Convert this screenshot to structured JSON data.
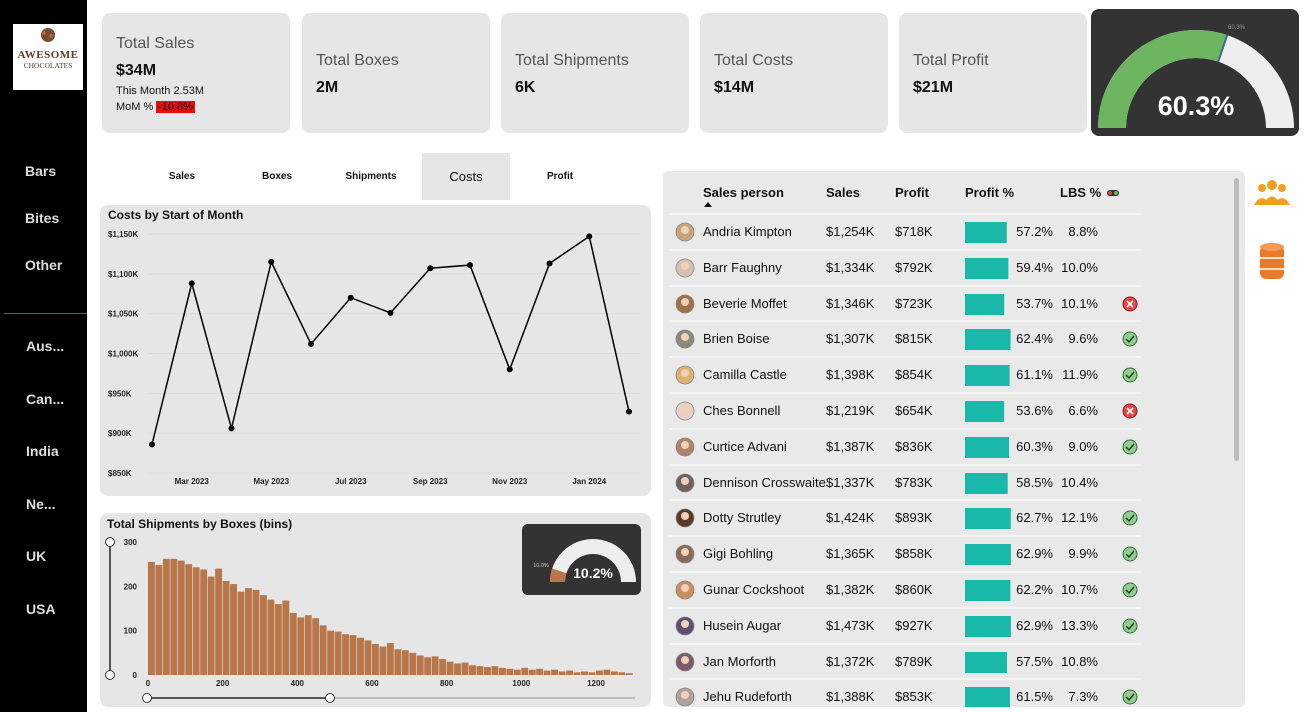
{
  "logo": {
    "line1": "AWESOME",
    "line2": "CHOCOLATES"
  },
  "sidebar": {
    "products": [
      "Bars",
      "Bites",
      "Other"
    ],
    "countries": [
      "Aus...",
      "Can...",
      "India",
      "Ne...",
      "UK",
      "USA"
    ]
  },
  "kpis": [
    {
      "title": "Total Sales",
      "value": "$34M",
      "this_month": "This Month 2.53M",
      "mom_label": "MoM %",
      "mom": "-10.8%"
    },
    {
      "title": "Total Boxes",
      "value": "2M"
    },
    {
      "title": "Total Shipments",
      "value": "6K"
    },
    {
      "title": "Total Costs",
      "value": "$14M"
    },
    {
      "title": "Total Profit",
      "value": "$21M"
    }
  ],
  "gauge": {
    "value": 60.3,
    "label": "60.3%",
    "marker_label": "60.3%",
    "lim": [
      0,
      100
    ]
  },
  "tabs": {
    "items": [
      "Sales",
      "Boxes",
      "Shipments",
      "Costs",
      "Profit"
    ],
    "selected": 3
  },
  "chart_data": [
    {
      "type": "line",
      "title": "Costs by Start of Month",
      "color": "#000000",
      "categories": [
        null,
        "Mar 2023",
        null,
        "May 2023",
        null,
        "Jul 2023",
        null,
        "Sep 2023",
        null,
        "Nov 2023",
        null,
        "Jan 2024",
        null
      ],
      "values": [
        886000,
        1088000,
        906000,
        1115000,
        1012000,
        1070000,
        1051000,
        1107000,
        1111000,
        980000,
        1113000,
        1147000,
        927000
      ],
      "ylim": [
        850000,
        1150000
      ],
      "yticks": [
        {
          "value": 850000,
          "label": "$850K"
        },
        {
          "value": 900000,
          "label": "$900K"
        },
        {
          "value": 950000,
          "label": "$950K"
        },
        {
          "value": 1000000,
          "label": "$1,000K"
        },
        {
          "value": 1050000,
          "label": "$1,050K"
        },
        {
          "value": 1100000,
          "label": "$1,100K"
        },
        {
          "value": 1150000,
          "label": "$1,150K"
        }
      ],
      "grid": true
    },
    {
      "type": "histogram",
      "title": "Total Shipments by Boxes (bins)",
      "color": "#b8774a",
      "bins": [
        0,
        20,
        40,
        60,
        80,
        100,
        120,
        140,
        160,
        180,
        200,
        220,
        240,
        260,
        280,
        300,
        320,
        340,
        360,
        380,
        400,
        420,
        440,
        460,
        480,
        500,
        520,
        540,
        560,
        580,
        600,
        620,
        640,
        660,
        680,
        700,
        720,
        740,
        760,
        780,
        800,
        820,
        840,
        860,
        880,
        900,
        920,
        940,
        960,
        980,
        1000,
        1020,
        1040,
        1060,
        1080,
        1100,
        1120,
        1140,
        1160,
        1180,
        1200,
        1220,
        1240,
        1260,
        1280,
        1300
      ],
      "values": [
        255,
        248,
        262,
        262,
        258,
        250,
        243,
        238,
        222,
        240,
        212,
        205,
        188,
        196,
        192,
        180,
        170,
        160,
        168,
        140,
        130,
        135,
        128,
        112,
        100,
        98,
        92,
        90,
        84,
        78,
        70,
        64,
        72,
        58,
        56,
        50,
        44,
        40,
        42,
        36,
        30,
        26,
        28,
        22,
        20,
        18,
        20,
        16,
        14,
        12,
        16,
        12,
        14,
        10,
        12,
        8,
        10,
        6,
        8,
        6,
        10,
        12,
        8,
        6,
        4
      ],
      "xlim": [
        -20,
        1320
      ],
      "xticks": [
        0,
        200,
        400,
        600,
        800,
        1000,
        1200
      ],
      "ylim": [
        0,
        300
      ],
      "yticks": [
        0,
        100,
        200,
        300
      ]
    }
  ],
  "shipments_gauge": {
    "value": 10.2,
    "label": "10.2%",
    "marker_label": "10.0%",
    "lim": [
      0,
      100
    ]
  },
  "table": {
    "columns": [
      "Sales person",
      "Sales",
      "Profit",
      "Profit %",
      "LBS %"
    ],
    "rows": [
      {
        "name": "Andria Kimpton",
        "sales": "$1,254K",
        "profit": "$718K",
        "profit_pct": {
          "value": 57.2,
          "label": "57.2%"
        },
        "lbs": "8.8%"
      },
      {
        "name": "Barr Faughny",
        "sales": "$1,334K",
        "profit": "$792K",
        "profit_pct": {
          "value": 59.4,
          "label": "59.4%"
        },
        "lbs": "10.0%"
      },
      {
        "name": "Beverie Moffet",
        "sales": "$1,346K",
        "profit": "$723K",
        "profit_pct": {
          "value": 53.7,
          "label": "53.7%"
        },
        "lbs": "10.1%",
        "status": "bad"
      },
      {
        "name": "Brien Boise",
        "sales": "$1,307K",
        "profit": "$815K",
        "profit_pct": {
          "value": 62.4,
          "label": "62.4%"
        },
        "lbs": "9.6%",
        "status": "good"
      },
      {
        "name": "Camilla Castle",
        "sales": "$1,398K",
        "profit": "$854K",
        "profit_pct": {
          "value": 61.1,
          "label": "61.1%"
        },
        "lbs": "11.9%",
        "status": "good"
      },
      {
        "name": "Ches Bonnell",
        "sales": "$1,219K",
        "profit": "$654K",
        "profit_pct": {
          "value": 53.6,
          "label": "53.6%"
        },
        "lbs": "6.6%",
        "status": "bad"
      },
      {
        "name": "Curtice Advani",
        "sales": "$1,387K",
        "profit": "$836K",
        "profit_pct": {
          "value": 60.3,
          "label": "60.3%"
        },
        "lbs": "9.0%",
        "status": "good"
      },
      {
        "name": "Dennison Crosswaite",
        "sales": "$1,337K",
        "profit": "$783K",
        "profit_pct": {
          "value": 58.5,
          "label": "58.5%"
        },
        "lbs": "10.4%"
      },
      {
        "name": "Dotty Strutley",
        "sales": "$1,424K",
        "profit": "$893K",
        "profit_pct": {
          "value": 62.7,
          "label": "62.7%"
        },
        "lbs": "12.1%",
        "status": "good"
      },
      {
        "name": "Gigi Bohling",
        "sales": "$1,365K",
        "profit": "$858K",
        "profit_pct": {
          "value": 62.9,
          "label": "62.9%"
        },
        "lbs": "9.9%",
        "status": "good"
      },
      {
        "name": "Gunar Cockshoot",
        "sales": "$1,382K",
        "profit": "$860K",
        "profit_pct": {
          "value": 62.2,
          "label": "62.2%"
        },
        "lbs": "10.7%",
        "status": "good"
      },
      {
        "name": "Husein Augar",
        "sales": "$1,473K",
        "profit": "$927K",
        "profit_pct": {
          "value": 62.9,
          "label": "62.9%"
        },
        "lbs": "13.3%",
        "status": "good"
      },
      {
        "name": "Jan Morforth",
        "sales": "$1,372K",
        "profit": "$789K",
        "profit_pct": {
          "value": 57.5,
          "label": "57.5%"
        },
        "lbs": "10.8%"
      },
      {
        "name": "Jehu Rudeforth",
        "sales": "$1,388K",
        "profit": "$853K",
        "profit_pct": {
          "value": 61.5,
          "label": "61.5%"
        },
        "lbs": "7.3%",
        "status": "good"
      }
    ]
  }
}
